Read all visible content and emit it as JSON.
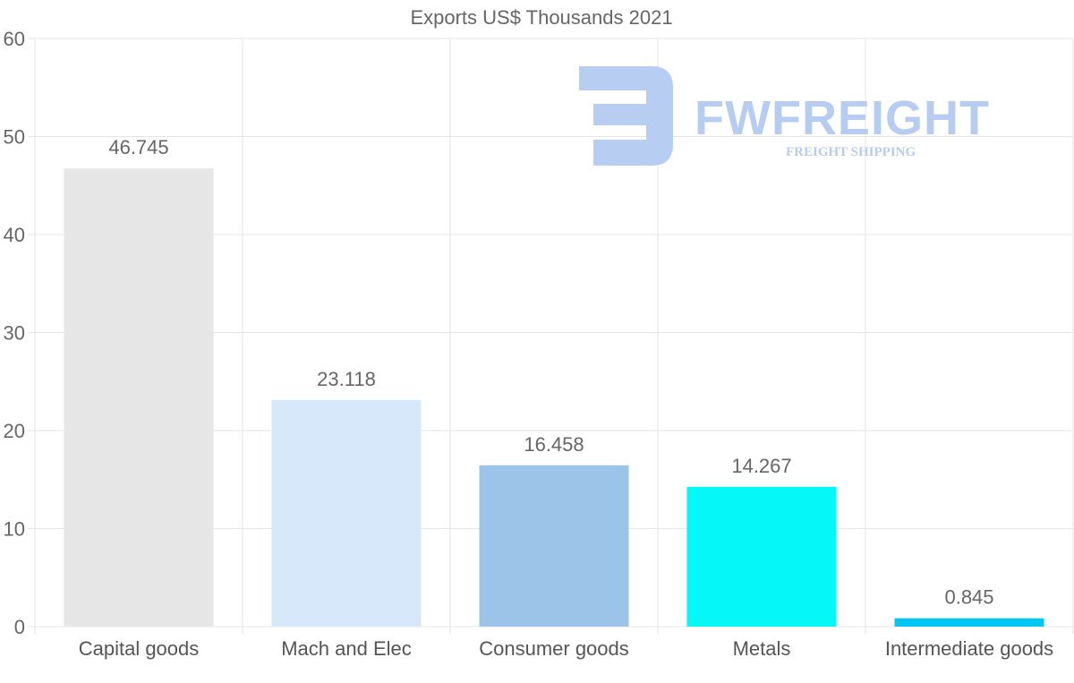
{
  "watermark": {
    "name": "FWFREIGHT",
    "tagline": "FREIGHT SHIPPING",
    "color": "#b3cbf1"
  },
  "chart_data": {
    "type": "bar",
    "title": "Exports US$ Thousands 2021",
    "categories": [
      "Capital goods",
      "Mach and Elec",
      "Consumer goods",
      "Metals",
      "Intermediate goods"
    ],
    "values": [
      46.745,
      23.118,
      16.458,
      14.267,
      0.845
    ],
    "value_labels": [
      "46.745",
      "23.118",
      "16.458",
      "14.267",
      "0.845"
    ],
    "colors": [
      "#e6e6e6",
      "#d6e8f9",
      "#9cc4e8",
      "#05f7f7",
      "#00c6f4"
    ],
    "ylim": [
      0,
      60
    ],
    "yticks": [
      0,
      10,
      20,
      30,
      40,
      50,
      60
    ],
    "xlabel": "",
    "ylabel": "",
    "grid": true,
    "legend": false
  }
}
